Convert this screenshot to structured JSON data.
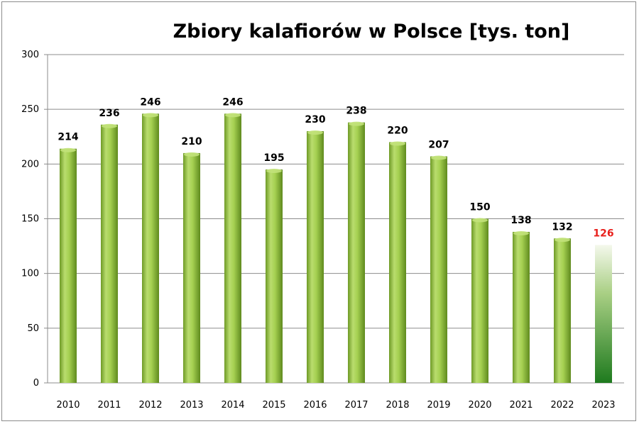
{
  "chart_data": {
    "type": "bar",
    "title": "Zbiory kalafiorów w Polsce [tys. ton]",
    "xlabel": "",
    "ylabel": "",
    "categories": [
      "2010",
      "2011",
      "2012",
      "2013",
      "2014",
      "2015",
      "2016",
      "2017",
      "2018",
      "2019",
      "2020",
      "2021",
      "2022",
      "2023"
    ],
    "values": [
      214,
      236,
      246,
      210,
      246,
      195,
      230,
      238,
      220,
      207,
      150,
      138,
      132,
      126
    ],
    "data_labels": [
      "214",
      "236",
      "246",
      "210",
      "246",
      "195",
      "230",
      "238",
      "220",
      "207",
      "150",
      "138",
      "132",
      "126"
    ],
    "ylim": [
      0,
      300
    ],
    "yticks": [
      0,
      50,
      100,
      150,
      200,
      250,
      300
    ],
    "ytick_labels": [
      "0",
      "50",
      "100",
      "150",
      "200",
      "250",
      "300"
    ],
    "grid": true,
    "legend": "none",
    "colors": {
      "bar_light": "#c2e27a",
      "bar_mid": "#95c341",
      "bar_dark": "#5f8a1e",
      "highlight_top": "#f4f8ec",
      "highlight_bottom": "#1e7a1e",
      "label_default": "#000000",
      "label_highlight": "#e8201c",
      "gridline": "#8c8c8c"
    },
    "highlight_index": 13
  }
}
